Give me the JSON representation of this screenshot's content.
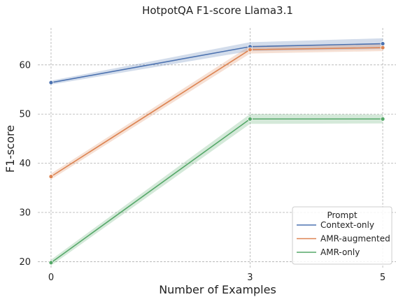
{
  "chart_data": {
    "type": "line",
    "title": "HotpotQA F1-score Llama3.1",
    "xlabel": "Number of Examples",
    "ylabel": "F1-score",
    "x": [
      0,
      3,
      5
    ],
    "xticks": [
      "0",
      "3",
      "5"
    ],
    "yticks": [
      "20",
      "30",
      "40",
      "50",
      "60"
    ],
    "xlim": [
      -0.2,
      5.2
    ],
    "ylim": [
      18.5,
      67.5
    ],
    "grid": true,
    "legend": {
      "title": "Prompt",
      "placement": "lower-right"
    },
    "series": [
      {
        "name": "Context-only",
        "color": "#4c72b0",
        "values": [
          56.4,
          63.7,
          64.3
        ],
        "band_low": [
          56.0,
          62.8,
          63.2
        ],
        "band_high": [
          56.8,
          64.6,
          65.4
        ]
      },
      {
        "name": "AMR-augmented",
        "color": "#dd8452",
        "values": [
          37.3,
          63.1,
          63.5
        ],
        "band_low": [
          36.7,
          62.3,
          62.8
        ],
        "band_high": [
          37.9,
          63.9,
          64.2
        ]
      },
      {
        "name": "AMR-only",
        "color": "#55a868",
        "values": [
          19.8,
          49.0,
          49.0
        ],
        "band_low": [
          19.2,
          48.0,
          48.1
        ],
        "band_high": [
          20.4,
          50.0,
          49.9
        ]
      }
    ]
  }
}
